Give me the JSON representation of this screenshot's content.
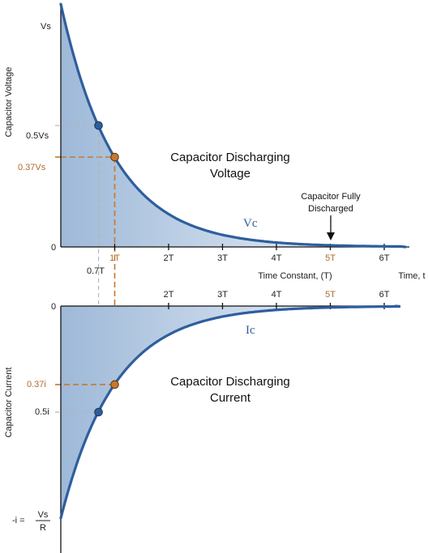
{
  "colors": {
    "curve": "#2e5e9e",
    "fill_dark": "#9eb9d8",
    "fill_light": "#f2f6fb",
    "highlight": "#c8772e",
    "guide": "#b5b5b5",
    "axis": "#111111"
  },
  "chart_data": [
    {
      "type": "area",
      "curve_label": "Vc",
      "title_lines": [
        "Capacitor Discharging",
        "Voltage"
      ],
      "ylabel": "Capacitor Voltage",
      "xlabel": "Time Constant, (T)",
      "x_end_label": "Time, t",
      "x_ticks": [
        "1T",
        "2T",
        "3T",
        "4T",
        "5T",
        "6T"
      ],
      "y_ticks": [
        {
          "label": "Vs",
          "value": 1.0
        },
        {
          "label": "0.5Vs",
          "value": 0.5
        },
        {
          "label": "0.37Vs",
          "value": 0.37
        },
        {
          "label": "0",
          "value": 0.0
        }
      ],
      "points": [
        {
          "x": 0.7,
          "y": 0.5,
          "x_label": "0.7T"
        },
        {
          "x": 1.0,
          "y": 0.37
        }
      ],
      "annotation": {
        "lines": [
          "Capacitor Fully",
          "Discharged"
        ],
        "x": 5
      },
      "xlim": [
        0,
        6.3
      ],
      "ylim": [
        0,
        1
      ]
    },
    {
      "type": "area",
      "curve_label": "Ic",
      "title_lines": [
        "Capacitor Discharging",
        "Current"
      ],
      "ylabel": "Capacitor Current",
      "x_ticks": [
        "2T",
        "3T",
        "4T",
        "5T",
        "6T"
      ],
      "y_ticks": [
        {
          "label": "0",
          "value": 0.0
        },
        {
          "label": "0.37i",
          "value": -0.37
        },
        {
          "label": "0.5i",
          "value": -0.5
        }
      ],
      "y_bottom_label": {
        "prefix": "-i =",
        "numerator": "Vs",
        "denominator": "R"
      },
      "points": [
        {
          "x": 0.7,
          "y": -0.5
        },
        {
          "x": 1.0,
          "y": -0.37
        }
      ],
      "xlim": [
        0,
        6.3
      ],
      "ylim": [
        -1,
        0
      ]
    }
  ]
}
